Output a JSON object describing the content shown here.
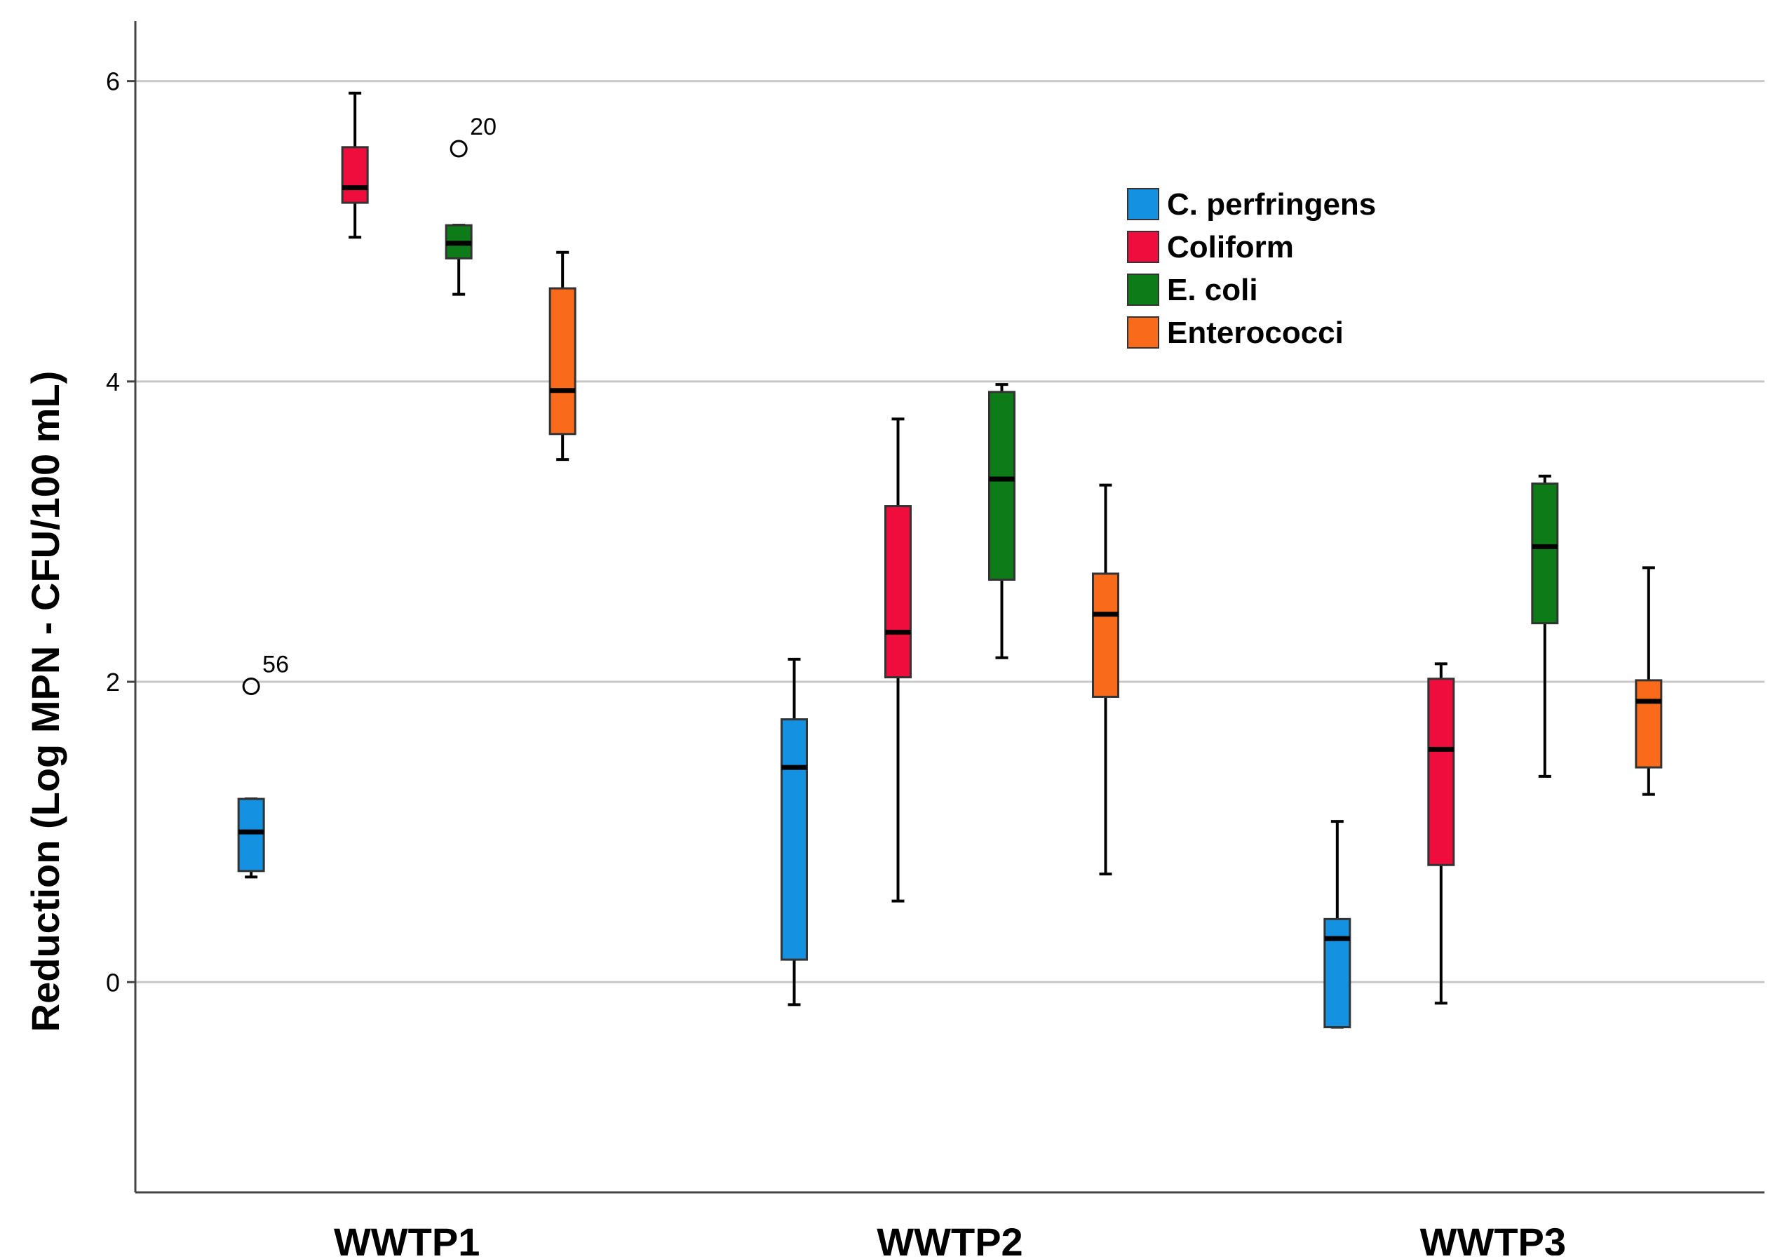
{
  "chart_data": {
    "type": "boxplot",
    "title": "",
    "xlabel": "",
    "ylabel": "Reduction (Log MPN - CFU/100 mL)",
    "ylim": [
      -1.4,
      6.4
    ],
    "yticks": [
      0,
      2,
      4,
      6
    ],
    "grid": "horizontal",
    "legend_position": "top-right",
    "categories": [
      "WWTP1",
      "WWTP2",
      "WWTP3"
    ],
    "series": [
      {
        "name": "C. perfringens",
        "color": "#1591E1",
        "boxes": [
          {
            "category": "WWTP1",
            "min": 0.7,
            "q1": 0.74,
            "median": 1.0,
            "q3": 1.22,
            "max": 1.22,
            "outliers": [
              {
                "value": 1.97,
                "label": "56"
              }
            ]
          },
          {
            "category": "WWTP2",
            "min": -0.15,
            "q1": 0.15,
            "median": 1.43,
            "q3": 1.75,
            "max": 2.15,
            "outliers": []
          },
          {
            "category": "WWTP3",
            "min": -0.3,
            "q1": -0.3,
            "median": 0.29,
            "q3": 0.42,
            "max": 1.07,
            "outliers": []
          }
        ]
      },
      {
        "name": "Coliform",
        "color": "#EE0D3D",
        "boxes": [
          {
            "category": "WWTP1",
            "min": 4.96,
            "q1": 5.19,
            "median": 5.29,
            "q3": 5.56,
            "max": 5.92,
            "outliers": []
          },
          {
            "category": "WWTP2",
            "min": 0.54,
            "q1": 2.03,
            "median": 2.33,
            "q3": 3.17,
            "max": 3.75,
            "outliers": []
          },
          {
            "category": "WWTP3",
            "min": -0.14,
            "q1": 0.78,
            "median": 1.55,
            "q3": 2.02,
            "max": 2.12,
            "outliers": []
          }
        ]
      },
      {
        "name": "E. coli",
        "color": "#0E7B19",
        "boxes": [
          {
            "category": "WWTP1",
            "min": 4.58,
            "q1": 4.82,
            "median": 4.92,
            "q3": 5.04,
            "max": 5.04,
            "outliers": [
              {
                "value": 5.55,
                "label": "20"
              }
            ]
          },
          {
            "category": "WWTP2",
            "min": 2.16,
            "q1": 2.68,
            "median": 3.35,
            "q3": 3.93,
            "max": 3.98,
            "outliers": []
          },
          {
            "category": "WWTP3",
            "min": 1.37,
            "q1": 2.39,
            "median": 2.9,
            "q3": 3.32,
            "max": 3.37,
            "outliers": []
          }
        ]
      },
      {
        "name": "Enterococci",
        "color": "#F96A1B",
        "boxes": [
          {
            "category": "WWTP1",
            "min": 3.48,
            "q1": 3.65,
            "median": 3.94,
            "q3": 4.62,
            "max": 4.86,
            "outliers": []
          },
          {
            "category": "WWTP2",
            "min": 0.72,
            "q1": 1.9,
            "median": 2.45,
            "q3": 2.72,
            "max": 3.31,
            "outliers": []
          },
          {
            "category": "WWTP3",
            "min": 1.25,
            "q1": 1.43,
            "median": 1.87,
            "q3": 2.01,
            "max": 2.76,
            "outliers": []
          }
        ]
      }
    ]
  }
}
